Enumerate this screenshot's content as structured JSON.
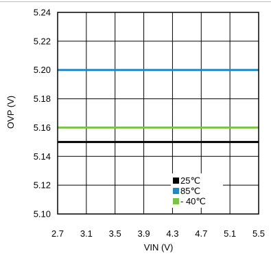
{
  "chart_data": {
    "type": "line",
    "xlabel": "VIN (V)",
    "ylabel": "OVP (V)",
    "xlim": [
      2.7,
      5.5
    ],
    "ylim": [
      5.1,
      5.24
    ],
    "x_ticks": [
      "2.7",
      "3.1",
      "3.5",
      "3.9",
      "4.3",
      "4.7",
      "5.1",
      "5.5"
    ],
    "y_ticks": [
      "5.10",
      "5.12",
      "5.14",
      "5.16",
      "5.18",
      "5.20",
      "5.22",
      "5.24"
    ],
    "grid": true,
    "legend_position": "bottom-right",
    "series": [
      {
        "name": "25℃",
        "color": "#000000",
        "x": [
          2.7,
          5.5
        ],
        "y": [
          5.15,
          5.15
        ]
      },
      {
        "name": "85℃",
        "color": "#1e88c8",
        "x": [
          2.7,
          5.5
        ],
        "y": [
          5.2,
          5.2
        ]
      },
      {
        "name": "- 40℃",
        "color": "#7cc242",
        "x": [
          2.7,
          5.5
        ],
        "y": [
          5.16,
          5.16
        ]
      }
    ]
  }
}
